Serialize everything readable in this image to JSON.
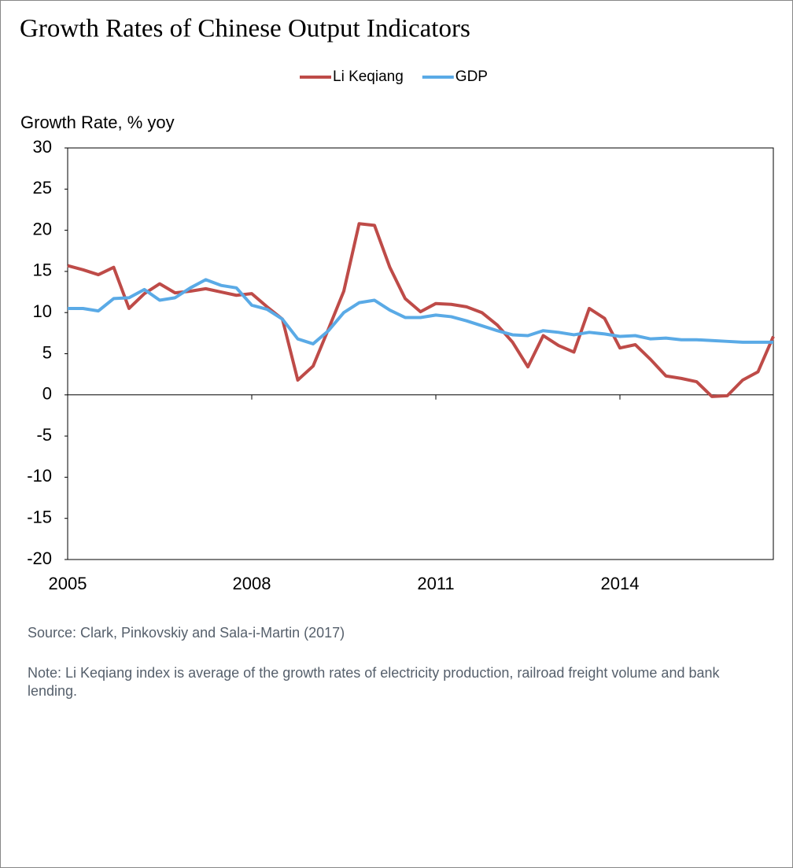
{
  "chart_data": {
    "type": "line",
    "title": "Growth Rates of Chinese Output Indicators",
    "y_label": "Growth Rate, % yoy",
    "source": "Source:  Clark, Pinkovskiy and Sala-i-Martin (2017)",
    "note": "Note: Li Keqiang index is average of the growth rates of electricity production, railroad freight volume and bank lending.",
    "x": [
      2005,
      2005.25,
      2005.5,
      2005.75,
      2006,
      2006.25,
      2006.5,
      2006.75,
      2007,
      2007.25,
      2007.5,
      2007.75,
      2008,
      2008.25,
      2008.5,
      2008.75,
      2009,
      2009.25,
      2009.5,
      2009.75,
      2010,
      2010.25,
      2010.5,
      2010.75,
      2011,
      2011.25,
      2011.5,
      2011.75,
      2012,
      2012.25,
      2012.5,
      2012.75,
      2013,
      2013.25,
      2013.5,
      2013.75,
      2014,
      2014.25,
      2014.5,
      2014.75,
      2015,
      2015.25,
      2015.5,
      2015.75,
      2016,
      2016.25,
      2016.5
    ],
    "series": [
      {
        "name": "Li Keqiang",
        "color": "#be4b48",
        "values": [
          15.7,
          15.2,
          14.6,
          15.5,
          10.5,
          12.3,
          13.5,
          12.4,
          12.6,
          12.9,
          12.5,
          12.1,
          12.3,
          10.7,
          9.2,
          1.8,
          3.5,
          8,
          12.6,
          20.8,
          20.6,
          15.5,
          11.7,
          10.1,
          11.1,
          11.0,
          10.7,
          10.0,
          8.5,
          6.4,
          3.4,
          7.2,
          6.0,
          5.2,
          10.5,
          9.3,
          5.7,
          6.1,
          4.3,
          2.3,
          2.0,
          1.6,
          -0.2,
          -0.1,
          1.8,
          2.8,
          7.1
        ]
      },
      {
        "name": "GDP",
        "color": "#5aaae6",
        "values": [
          10.5,
          10.5,
          10.2,
          11.7,
          11.8,
          12.8,
          11.5,
          11.8,
          13.0,
          14.0,
          13.3,
          13.0,
          10.9,
          10.4,
          9.2,
          6.8,
          6.2,
          7.8,
          10.0,
          11.2,
          11.5,
          10.3,
          9.4,
          9.4,
          9.7,
          9.5,
          9.0,
          8.4,
          7.8,
          7.3,
          7.2,
          7.8,
          7.6,
          7.3,
          7.6,
          7.4,
          7.1,
          7.2,
          6.8,
          6.9,
          6.7,
          6.7,
          6.6,
          6.5,
          6.4,
          6.4,
          6.4
        ]
      }
    ],
    "xlim": [
      2005,
      2016.5
    ],
    "xticks": [
      2005,
      2008,
      2011,
      2014
    ],
    "ylim": [
      -20,
      30
    ],
    "yticks": [
      -20,
      -15,
      -10,
      -5,
      0,
      5,
      10,
      15,
      20,
      25,
      30
    ],
    "grid": false
  }
}
